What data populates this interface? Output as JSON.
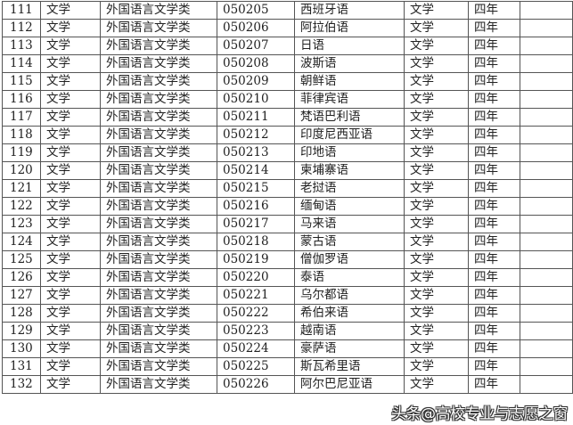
{
  "rows": [
    [
      "111",
      "文学",
      "外国语言文学类",
      "050205",
      "西班牙语",
      "文学",
      "四年",
      ""
    ],
    [
      "112",
      "文学",
      "外国语言文学类",
      "050206",
      "阿拉伯语",
      "文学",
      "四年",
      ""
    ],
    [
      "113",
      "文学",
      "外国语言文学类",
      "050207",
      "日语",
      "文学",
      "四年",
      ""
    ],
    [
      "114",
      "文学",
      "外国语言文学类",
      "050208",
      "波斯语",
      "文学",
      "四年",
      ""
    ],
    [
      "115",
      "文学",
      "外国语言文学类",
      "050209",
      "朝鲜语",
      "文学",
      "四年",
      ""
    ],
    [
      "116",
      "文学",
      "外国语言文学类",
      "050210",
      "菲律宾语",
      "文学",
      "四年",
      ""
    ],
    [
      "117",
      "文学",
      "外国语言文学类",
      "050211",
      "梵语巴利语",
      "文学",
      "四年",
      ""
    ],
    [
      "118",
      "文学",
      "外国语言文学类",
      "050212",
      "印度尼西亚语",
      "文学",
      "四年",
      ""
    ],
    [
      "119",
      "文学",
      "外国语言文学类",
      "050213",
      "印地语",
      "文学",
      "四年",
      ""
    ],
    [
      "120",
      "文学",
      "外国语言文学类",
      "050214",
      "柬埔寨语",
      "文学",
      "四年",
      ""
    ],
    [
      "121",
      "文学",
      "外国语言文学类",
      "050215",
      "老挝语",
      "文学",
      "四年",
      ""
    ],
    [
      "122",
      "文学",
      "外国语言文学类",
      "050216",
      "缅甸语",
      "文学",
      "四年",
      ""
    ],
    [
      "123",
      "文学",
      "外国语言文学类",
      "050217",
      "马来语",
      "文学",
      "四年",
      ""
    ],
    [
      "124",
      "文学",
      "外国语言文学类",
      "050218",
      "蒙古语",
      "文学",
      "四年",
      ""
    ],
    [
      "125",
      "文学",
      "外国语言文学类",
      "050219",
      "僧伽罗语",
      "文学",
      "四年",
      ""
    ],
    [
      "126",
      "文学",
      "外国语言文学类",
      "050220",
      "泰语",
      "文学",
      "四年",
      ""
    ],
    [
      "127",
      "文学",
      "外国语言文学类",
      "050221",
      "乌尔都语",
      "文学",
      "四年",
      ""
    ],
    [
      "128",
      "文学",
      "外国语言文学类",
      "050222",
      "希伯来语",
      "文学",
      "四年",
      ""
    ],
    [
      "129",
      "文学",
      "外国语言文学类",
      "050223",
      "越南语",
      "文学",
      "四年",
      ""
    ],
    [
      "130",
      "文学",
      "外国语言文学类",
      "050224",
      "豪萨语",
      "文学",
      "四年",
      ""
    ],
    [
      "131",
      "文学",
      "外国语言文学类",
      "050225",
      "斯瓦希里语",
      "文学",
      "四年",
      ""
    ],
    [
      "132",
      "文学",
      "外国语言文学类",
      "050226",
      "阿尔巴尼亚语",
      "文学",
      "四年",
      ""
    ]
  ],
  "watermark": "头条@高校专业与志愿之窗"
}
